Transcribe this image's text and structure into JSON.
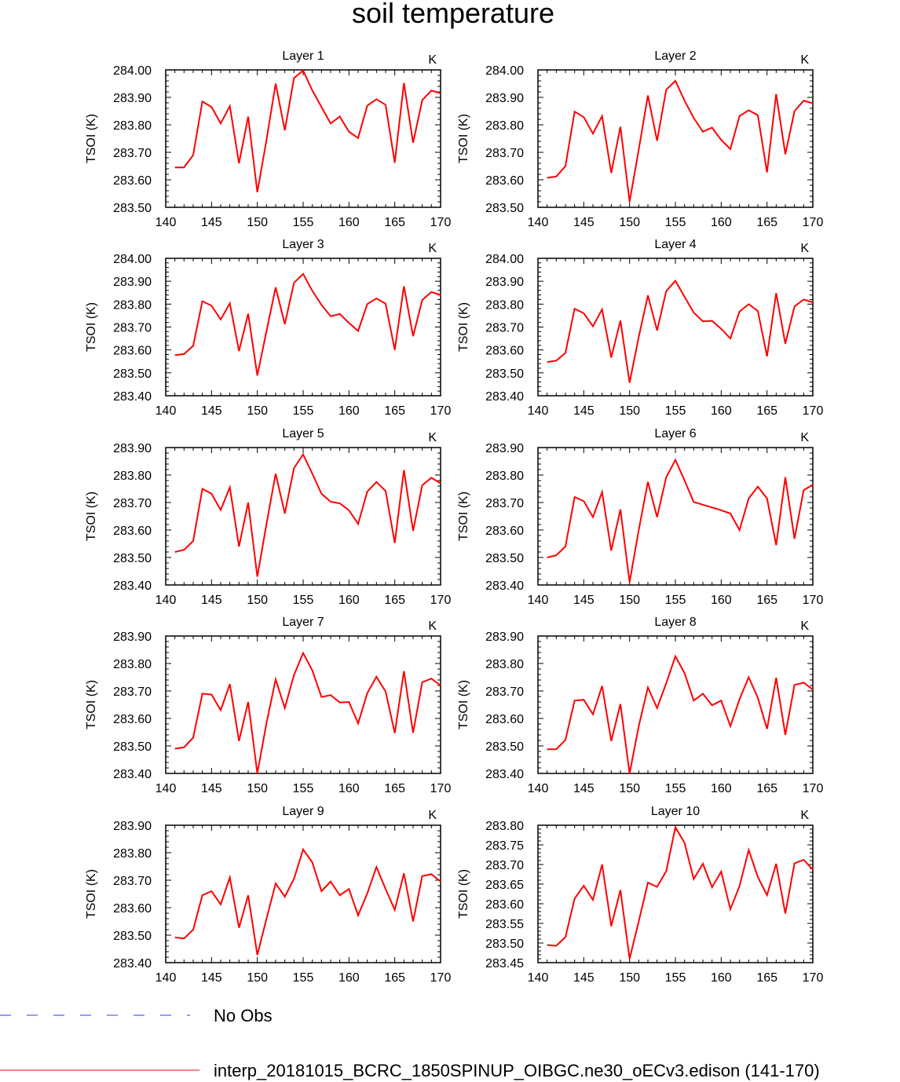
{
  "page": {
    "title": "soil temperature"
  },
  "legend": {
    "entries": [
      {
        "label": "No Obs",
        "color": "#3333ff",
        "dash": "dashed"
      },
      {
        "label": "interp_20181015_BCRC_1850SPINUP_OIBGC.ne30_oECv3.edison (141-170)",
        "color": "#ff0000",
        "dash": "solid"
      }
    ]
  },
  "chart_data": [
    {
      "type": "line",
      "title": "Layer 1",
      "unit_label": "K",
      "xlabel": "",
      "ylabel": "TSOI  (K)",
      "xlim": [
        140,
        170
      ],
      "ylim": [
        283.5,
        284.0
      ],
      "xticks": [
        "140",
        "145",
        "150",
        "155",
        "160",
        "165",
        "170"
      ],
      "yticks": [
        "283.50",
        "283.60",
        "283.70",
        "283.80",
        "283.90",
        "284.00"
      ],
      "x": [
        141,
        142,
        143,
        144,
        145,
        146,
        147,
        148,
        149,
        150,
        151,
        152,
        153,
        154,
        155,
        156,
        157,
        158,
        159,
        160,
        161,
        162,
        163,
        164,
        165,
        166,
        167,
        168,
        169,
        170
      ],
      "series": [
        {
          "color": "#ff0000",
          "values": [
            283.645,
            283.645,
            283.69,
            283.885,
            283.865,
            283.805,
            283.868,
            283.66,
            283.83,
            283.555,
            283.745,
            283.95,
            283.78,
            283.97,
            283.998,
            283.925,
            283.865,
            283.805,
            283.83,
            283.775,
            283.752,
            283.87,
            283.893,
            283.873,
            283.662,
            283.952,
            283.735,
            283.89,
            283.925,
            283.915
          ]
        }
      ]
    },
    {
      "type": "line",
      "title": "Layer 2",
      "unit_label": "K",
      "xlabel": "",
      "ylabel": "TSOI  (K)",
      "xlim": [
        140,
        170
      ],
      "ylim": [
        283.5,
        284.0
      ],
      "xticks": [
        "140",
        "145",
        "150",
        "155",
        "160",
        "165",
        "170"
      ],
      "yticks": [
        "283.50",
        "283.60",
        "283.70",
        "283.80",
        "283.90",
        "284.00"
      ],
      "x": [
        141,
        142,
        143,
        144,
        145,
        146,
        147,
        148,
        149,
        150,
        151,
        152,
        153,
        154,
        155,
        156,
        157,
        158,
        159,
        160,
        161,
        162,
        163,
        164,
        165,
        166,
        167,
        168,
        169,
        170
      ],
      "series": [
        {
          "color": "#ff0000",
          "values": [
            283.607,
            283.612,
            283.65,
            283.848,
            283.828,
            283.768,
            283.832,
            283.625,
            283.793,
            283.52,
            283.71,
            283.907,
            283.742,
            283.928,
            283.96,
            283.888,
            283.825,
            283.775,
            283.79,
            283.745,
            283.712,
            283.832,
            283.853,
            283.835,
            283.627,
            283.912,
            283.693,
            283.85,
            283.888,
            283.878
          ]
        }
      ]
    },
    {
      "type": "line",
      "title": "Layer 3",
      "unit_label": "K",
      "xlabel": "",
      "ylabel": "TSOI  (K)",
      "xlim": [
        140,
        170
      ],
      "ylim": [
        283.4,
        284.0
      ],
      "xticks": [
        "140",
        "145",
        "150",
        "155",
        "160",
        "165",
        "170"
      ],
      "yticks": [
        "283.40",
        "283.50",
        "283.60",
        "283.70",
        "283.80",
        "283.90",
        "284.00"
      ],
      "x": [
        141,
        142,
        143,
        144,
        145,
        146,
        147,
        148,
        149,
        150,
        151,
        152,
        153,
        154,
        155,
        156,
        157,
        158,
        159,
        160,
        161,
        162,
        163,
        164,
        165,
        166,
        167,
        168,
        169,
        170
      ],
      "series": [
        {
          "color": "#ff0000",
          "values": [
            283.577,
            283.582,
            283.618,
            283.813,
            283.793,
            283.733,
            283.803,
            283.595,
            283.758,
            283.488,
            283.682,
            283.873,
            283.713,
            283.893,
            283.932,
            283.858,
            283.797,
            283.747,
            283.757,
            283.718,
            283.683,
            283.8,
            283.825,
            283.802,
            283.6,
            283.878,
            283.66,
            283.818,
            283.853,
            283.84
          ]
        }
      ]
    },
    {
      "type": "line",
      "title": "Layer 4",
      "unit_label": "K",
      "xlabel": "",
      "ylabel": "TSOI  (K)",
      "xlim": [
        140,
        170
      ],
      "ylim": [
        283.4,
        284.0
      ],
      "xticks": [
        "140",
        "145",
        "150",
        "155",
        "160",
        "165",
        "170"
      ],
      "yticks": [
        "283.40",
        "283.50",
        "283.60",
        "283.70",
        "283.80",
        "283.90",
        "284.00"
      ],
      "x": [
        141,
        142,
        143,
        144,
        145,
        146,
        147,
        148,
        149,
        150,
        151,
        152,
        153,
        154,
        155,
        156,
        157,
        158,
        159,
        160,
        161,
        162,
        163,
        164,
        165,
        166,
        167,
        168,
        169,
        170
      ],
      "series": [
        {
          "color": "#ff0000",
          "values": [
            283.547,
            283.553,
            283.587,
            283.78,
            283.76,
            283.703,
            283.777,
            283.567,
            283.728,
            283.457,
            283.657,
            283.838,
            283.685,
            283.857,
            283.902,
            283.832,
            283.763,
            283.725,
            283.727,
            283.692,
            283.65,
            283.768,
            283.8,
            283.77,
            283.572,
            283.848,
            283.627,
            283.79,
            283.82,
            283.808
          ]
        }
      ]
    },
    {
      "type": "line",
      "title": "Layer 5",
      "unit_label": "K",
      "xlabel": "",
      "ylabel": "TSOI  (K)",
      "xlim": [
        140,
        170
      ],
      "ylim": [
        283.4,
        283.9
      ],
      "xticks": [
        "140",
        "145",
        "150",
        "155",
        "160",
        "165",
        "170"
      ],
      "yticks": [
        "283.40",
        "283.50",
        "283.60",
        "283.70",
        "283.80",
        "283.90"
      ],
      "x": [
        141,
        142,
        143,
        144,
        145,
        146,
        147,
        148,
        149,
        150,
        151,
        152,
        153,
        154,
        155,
        156,
        157,
        158,
        159,
        160,
        161,
        162,
        163,
        164,
        165,
        166,
        167,
        168,
        169,
        170
      ],
      "series": [
        {
          "color": "#ff0000",
          "values": [
            283.52,
            283.528,
            283.56,
            283.75,
            283.732,
            283.673,
            283.755,
            283.54,
            283.7,
            283.43,
            283.622,
            283.805,
            283.66,
            283.825,
            283.875,
            283.805,
            283.732,
            283.703,
            283.697,
            283.672,
            283.622,
            283.74,
            283.775,
            283.742,
            283.553,
            283.818,
            283.597,
            283.763,
            283.79,
            283.77
          ]
        }
      ]
    },
    {
      "type": "line",
      "title": "Layer 6",
      "unit_label": "K",
      "xlabel": "",
      "ylabel": "TSOI  (K)",
      "xlim": [
        140,
        170
      ],
      "ylim": [
        283.4,
        283.9
      ],
      "xticks": [
        "140",
        "145",
        "150",
        "155",
        "160",
        "165",
        "170"
      ],
      "yticks": [
        "283.40",
        "283.50",
        "283.60",
        "283.70",
        "283.80",
        "283.90"
      ],
      "x": [
        141,
        142,
        143,
        144,
        145,
        146,
        147,
        148,
        149,
        150,
        151,
        152,
        153,
        154,
        155,
        156,
        157,
        158,
        159,
        160,
        161,
        162,
        163,
        164,
        165,
        166,
        167,
        168,
        169,
        170
      ],
      "series": [
        {
          "color": "#ff0000",
          "values": [
            283.5,
            283.508,
            283.54,
            283.72,
            283.705,
            283.647,
            283.738,
            283.525,
            283.675,
            283.41,
            283.6,
            283.775,
            283.647,
            283.792,
            283.855,
            283.78,
            283.702,
            283.692,
            283.682,
            283.672,
            283.66,
            283.6,
            283.715,
            283.758,
            283.715,
            283.545,
            283.792,
            283.568,
            283.745,
            283.765
          ]
        }
      ]
    },
    {
      "type": "line",
      "title": "Layer 7",
      "unit_label": "K",
      "xlabel": "",
      "ylabel": "TSOI  (K)",
      "xlim": [
        140,
        170
      ],
      "ylim": [
        283.4,
        283.9
      ],
      "xticks": [
        "140",
        "145",
        "150",
        "155",
        "160",
        "165",
        "170"
      ],
      "yticks": [
        "283.40",
        "283.50",
        "283.60",
        "283.70",
        "283.80",
        "283.90"
      ],
      "x": [
        141,
        142,
        143,
        144,
        145,
        146,
        147,
        148,
        149,
        150,
        151,
        152,
        153,
        154,
        155,
        156,
        157,
        158,
        159,
        160,
        161,
        162,
        163,
        164,
        165,
        166,
        167,
        168,
        169,
        170
      ],
      "series": [
        {
          "color": "#ff0000",
          "values": [
            283.49,
            283.495,
            283.53,
            283.69,
            283.687,
            283.63,
            283.725,
            283.518,
            283.66,
            283.4,
            283.583,
            283.742,
            283.638,
            283.758,
            283.838,
            283.775,
            283.678,
            283.685,
            283.658,
            283.66,
            283.582,
            283.692,
            283.752,
            283.698,
            283.547,
            283.772,
            283.548,
            283.732,
            283.745,
            283.72
          ]
        }
      ]
    },
    {
      "type": "line",
      "title": "Layer 8",
      "unit_label": "K",
      "xlabel": "",
      "ylabel": "TSOI  (K)",
      "xlim": [
        140,
        170
      ],
      "ylim": [
        283.4,
        283.9
      ],
      "xticks": [
        "140",
        "145",
        "150",
        "155",
        "160",
        "165",
        "170"
      ],
      "yticks": [
        "283.40",
        "283.50",
        "283.60",
        "283.70",
        "283.80",
        "283.90"
      ],
      "x": [
        141,
        142,
        143,
        144,
        145,
        146,
        147,
        148,
        149,
        150,
        151,
        152,
        153,
        154,
        155,
        156,
        157,
        158,
        159,
        160,
        161,
        162,
        163,
        164,
        165,
        166,
        167,
        168,
        169,
        170
      ],
      "series": [
        {
          "color": "#ff0000",
          "values": [
            283.488,
            283.488,
            283.522,
            283.665,
            283.668,
            283.615,
            283.718,
            283.518,
            283.652,
            283.4,
            283.572,
            283.713,
            283.638,
            283.728,
            283.826,
            283.765,
            283.665,
            283.69,
            283.648,
            283.665,
            283.572,
            283.67,
            283.75,
            283.675,
            283.562,
            283.748,
            283.54,
            283.722,
            283.73,
            283.705
          ]
        }
      ]
    },
    {
      "type": "line",
      "title": "Layer 9",
      "unit_label": "K",
      "xlabel": "",
      "ylabel": "TSOI  (K)",
      "xlim": [
        140,
        170
      ],
      "ylim": [
        283.4,
        283.9
      ],
      "xticks": [
        "140",
        "145",
        "150",
        "155",
        "160",
        "165",
        "170"
      ],
      "yticks": [
        "283.40",
        "283.50",
        "283.60",
        "283.70",
        "283.80",
        "283.90"
      ],
      "x": [
        141,
        142,
        143,
        144,
        145,
        146,
        147,
        148,
        149,
        150,
        151,
        152,
        153,
        154,
        155,
        156,
        157,
        158,
        159,
        160,
        161,
        162,
        163,
        164,
        165,
        166,
        167,
        168,
        169,
        170
      ],
      "series": [
        {
          "color": "#ff0000",
          "values": [
            283.492,
            283.488,
            283.52,
            283.645,
            283.66,
            283.612,
            283.71,
            283.527,
            283.645,
            283.428,
            283.56,
            283.688,
            283.64,
            283.705,
            283.812,
            283.765,
            283.66,
            283.695,
            283.645,
            283.668,
            283.572,
            283.652,
            283.748,
            283.668,
            283.592,
            283.725,
            283.55,
            283.715,
            283.722,
            283.695
          ]
        }
      ]
    },
    {
      "type": "line",
      "title": "Layer 10",
      "unit_label": "K",
      "xlabel": "",
      "ylabel": "TSOI  (K)",
      "xlim": [
        140,
        170
      ],
      "ylim": [
        283.45,
        283.8
      ],
      "xticks": [
        "140",
        "145",
        "150",
        "155",
        "160",
        "165",
        "170"
      ],
      "yticks": [
        "283.45",
        "283.50",
        "283.55",
        "283.60",
        "283.65",
        "283.70",
        "283.75",
        "283.80"
      ],
      "x": [
        141,
        142,
        143,
        144,
        145,
        146,
        147,
        148,
        149,
        150,
        151,
        152,
        153,
        154,
        155,
        156,
        157,
        158,
        159,
        160,
        161,
        162,
        163,
        164,
        165,
        166,
        167,
        168,
        169,
        170
      ],
      "series": [
        {
          "color": "#ff0000",
          "values": [
            283.495,
            283.493,
            283.515,
            283.613,
            283.646,
            283.61,
            283.7,
            283.543,
            283.635,
            283.46,
            283.555,
            283.654,
            283.643,
            283.683,
            283.795,
            283.755,
            283.663,
            283.702,
            283.642,
            283.682,
            283.586,
            283.645,
            283.737,
            283.668,
            283.622,
            283.702,
            283.575,
            283.703,
            283.712,
            283.687
          ]
        }
      ]
    }
  ]
}
